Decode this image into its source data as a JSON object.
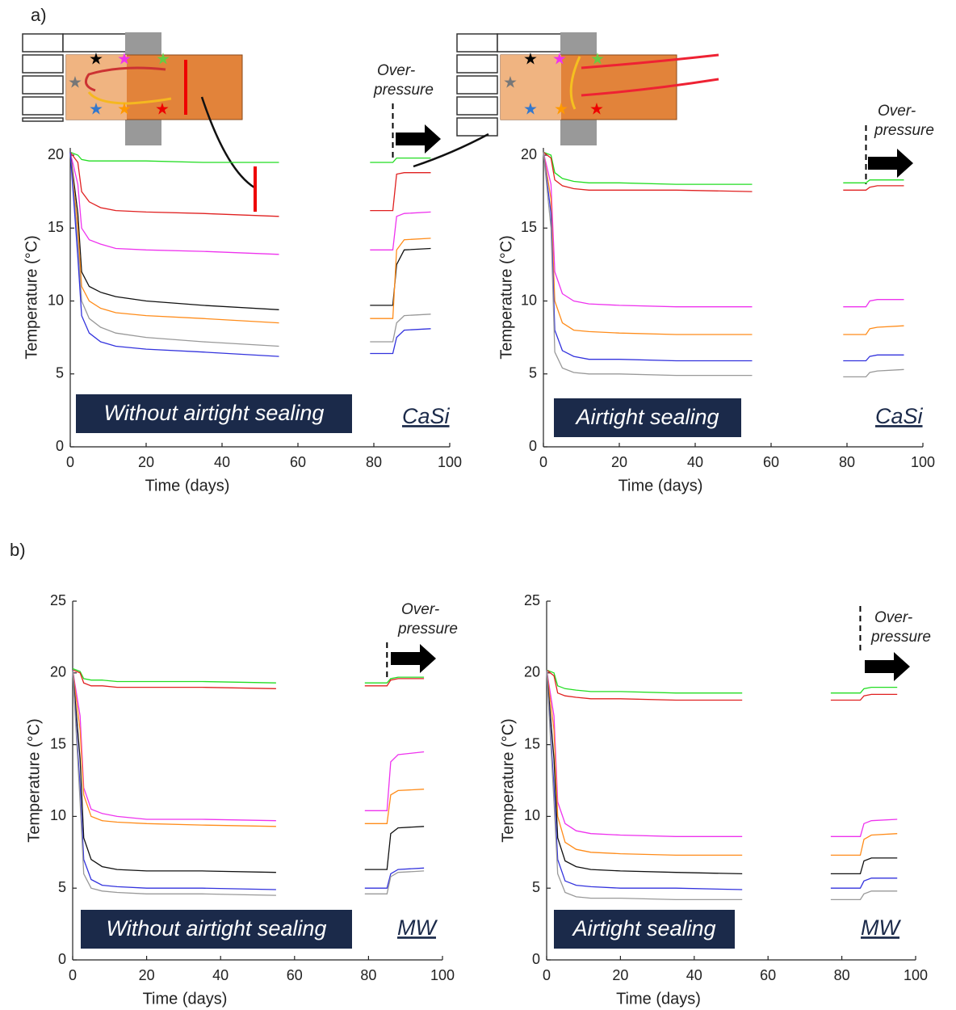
{
  "panel_labels": [
    "a)",
    "b)"
  ],
  "chart_data": [
    {
      "type": "line",
      "xlabel": "Time (days)",
      "ylabel": "Temperature (°C)",
      "xlim": [
        0,
        100
      ],
      "ylim": [
        0,
        20.5
      ],
      "xticks": [
        0,
        20,
        40,
        60,
        80,
        100
      ],
      "yticks": [
        0,
        5,
        10,
        15,
        20
      ],
      "annotation": [
        "Over-",
        "pressure"
      ],
      "event_x": 85,
      "label_box": "Without airtight sealing",
      "material": "CaSi",
      "x": [
        0,
        2,
        3,
        5,
        8,
        12,
        20,
        35,
        55,
        70,
        79,
        85,
        86,
        88,
        95
      ],
      "series": [
        {
          "color": "#22dd22",
          "values": [
            20.2,
            20,
            19.7,
            19.6,
            19.6,
            19.6,
            19.6,
            19.5,
            19.5,
            null,
            19.5,
            19.5,
            19.8,
            19.8,
            19.8
          ]
        },
        {
          "color": "#e02020",
          "values": [
            20.2,
            19.5,
            17.5,
            16.8,
            16.4,
            16.2,
            16.1,
            16,
            15.8,
            null,
            16.2,
            16.2,
            18.7,
            18.8,
            18.8
          ]
        },
        {
          "color": "#ee33ee",
          "values": [
            20.2,
            18,
            15,
            14.2,
            13.9,
            13.6,
            13.5,
            13.4,
            13.2,
            null,
            13.5,
            13.5,
            15.8,
            16,
            16.1
          ]
        },
        {
          "color": "#111111",
          "values": [
            20.2,
            16,
            12,
            11,
            10.6,
            10.3,
            10,
            9.7,
            9.4,
            null,
            9.7,
            9.7,
            12.5,
            13.5,
            13.6
          ]
        },
        {
          "color": "#ff8c1a",
          "values": [
            20.2,
            15,
            11,
            10,
            9.5,
            9.2,
            9,
            8.8,
            8.5,
            null,
            8.8,
            8.8,
            13.5,
            14.2,
            14.3
          ]
        },
        {
          "color": "#999999",
          "values": [
            20.2,
            14,
            10,
            8.8,
            8.2,
            7.8,
            7.5,
            7.2,
            6.9,
            null,
            7.2,
            7.2,
            8.5,
            9,
            9.1
          ]
        },
        {
          "color": "#3333dd",
          "values": [
            20.2,
            13,
            9,
            7.8,
            7.2,
            6.9,
            6.7,
            6.5,
            6.2,
            null,
            6.4,
            6.4,
            7.5,
            8,
            8.1
          ]
        }
      ]
    },
    {
      "type": "line",
      "xlabel": "Time (days)",
      "ylabel": "Temperature (°C)",
      "xlim": [
        0,
        100
      ],
      "ylim": [
        0,
        20.5
      ],
      "xticks": [
        0,
        20,
        40,
        60,
        80,
        100
      ],
      "yticks": [
        0,
        5,
        10,
        15,
        20
      ],
      "annotation": [
        "Over-",
        "pressure"
      ],
      "event_x": 85,
      "label_box": "Airtight sealing",
      "material": "CaSi",
      "x": [
        0,
        2,
        3,
        5,
        8,
        12,
        20,
        35,
        55,
        70,
        79,
        85,
        86,
        88,
        95
      ],
      "series": [
        {
          "color": "#22dd22",
          "values": [
            20.2,
            20,
            18.8,
            18.4,
            18.2,
            18.1,
            18.1,
            18,
            18,
            null,
            18.1,
            18.1,
            18.3,
            18.3,
            18.3
          ]
        },
        {
          "color": "#e02020",
          "values": [
            20.2,
            19.8,
            18.3,
            17.9,
            17.7,
            17.6,
            17.6,
            17.6,
            17.5,
            null,
            17.6,
            17.6,
            17.8,
            17.9,
            17.9
          ]
        },
        {
          "color": "#ee33ee",
          "values": [
            20.2,
            18,
            12,
            10.5,
            10,
            9.8,
            9.7,
            9.6,
            9.6,
            null,
            9.6,
            9.6,
            10,
            10.1,
            10.1
          ]
        },
        {
          "color": "#ff8c1a",
          "values": [
            20.2,
            17,
            10,
            8.5,
            8,
            7.9,
            7.8,
            7.7,
            7.7,
            null,
            7.7,
            7.7,
            8.1,
            8.2,
            8.3
          ]
        },
        {
          "color": "#3333dd",
          "values": [
            20.2,
            16,
            8,
            6.6,
            6.2,
            6,
            6,
            5.9,
            5.9,
            null,
            5.9,
            5.9,
            6.2,
            6.3,
            6.3
          ]
        },
        {
          "color": "#999999",
          "values": [
            20.2,
            15,
            6.5,
            5.4,
            5.1,
            5,
            5,
            4.9,
            4.9,
            null,
            4.8,
            4.8,
            5.1,
            5.2,
            5.3
          ]
        }
      ]
    },
    {
      "type": "line",
      "xlabel": "Time (days)",
      "ylabel": "Temperature (°C)",
      "xlim": [
        0,
        100
      ],
      "ylim": [
        0,
        25
      ],
      "xticks": [
        0,
        20,
        40,
        60,
        80,
        100
      ],
      "yticks": [
        0,
        5,
        10,
        15,
        20,
        25
      ],
      "annotation": [
        "Over-",
        "pressure"
      ],
      "event_x": 85,
      "label_box": "Without airtight sealing",
      "material": "MW",
      "x": [
        0,
        2,
        3,
        5,
        8,
        12,
        20,
        35,
        55,
        70,
        79,
        85,
        86,
        88,
        95
      ],
      "series": [
        {
          "color": "#22dd22",
          "values": [
            20.3,
            20.1,
            19.6,
            19.5,
            19.5,
            19.4,
            19.4,
            19.4,
            19.3,
            null,
            19.3,
            19.3,
            19.6,
            19.7,
            19.7
          ]
        },
        {
          "color": "#e02020",
          "values": [
            20.2,
            20,
            19.3,
            19.1,
            19.1,
            19,
            19,
            19,
            18.9,
            null,
            19.1,
            19.1,
            19.5,
            19.6,
            19.6
          ]
        },
        {
          "color": "#ee33ee",
          "values": [
            20.2,
            17,
            12,
            10.5,
            10.2,
            10,
            9.8,
            9.8,
            9.7,
            null,
            10.4,
            10.4,
            13.8,
            14.3,
            14.5
          ]
        },
        {
          "color": "#ff8c1a",
          "values": [
            20.2,
            16,
            11.5,
            10,
            9.7,
            9.6,
            9.5,
            9.4,
            9.3,
            null,
            9.5,
            9.5,
            11.5,
            11.8,
            11.9
          ]
        },
        {
          "color": "#111111",
          "values": [
            20.2,
            14,
            8.5,
            7,
            6.5,
            6.3,
            6.2,
            6.2,
            6.1,
            null,
            6.3,
            6.3,
            8.8,
            9.2,
            9.3
          ]
        },
        {
          "color": "#3333dd",
          "values": [
            20.2,
            12,
            7,
            5.6,
            5.2,
            5.1,
            5,
            5,
            4.9,
            null,
            5,
            5,
            6,
            6.3,
            6.4
          ]
        },
        {
          "color": "#999999",
          "values": [
            20.2,
            11,
            6,
            5,
            4.8,
            4.7,
            4.6,
            4.6,
            4.5,
            null,
            4.6,
            4.6,
            5.8,
            6.1,
            6.2
          ]
        }
      ]
    },
    {
      "type": "line",
      "xlabel": "Time (days)",
      "ylabel": "Temperature (°C)",
      "xlim": [
        0,
        100
      ],
      "ylim": [
        0,
        25
      ],
      "xticks": [
        0,
        20,
        40,
        60,
        80,
        100
      ],
      "yticks": [
        0,
        5,
        10,
        15,
        20,
        25
      ],
      "annotation": [
        "Over-",
        "pressure"
      ],
      "event_x": 85,
      "label_box": "Airtight sealing",
      "material": "MW",
      "x": [
        0,
        2,
        3,
        5,
        8,
        12,
        20,
        35,
        53,
        70,
        77,
        85,
        86,
        88,
        95
      ],
      "series": [
        {
          "color": "#22dd22",
          "values": [
            20.2,
            20,
            19.1,
            18.9,
            18.8,
            18.7,
            18.7,
            18.6,
            18.6,
            null,
            18.6,
            18.6,
            18.9,
            19,
            19
          ]
        },
        {
          "color": "#e02020",
          "values": [
            20.2,
            19.8,
            18.6,
            18.4,
            18.3,
            18.2,
            18.2,
            18.1,
            18.1,
            null,
            18.1,
            18.1,
            18.4,
            18.5,
            18.5
          ]
        },
        {
          "color": "#ee33ee",
          "values": [
            20.2,
            17,
            11,
            9.5,
            9,
            8.8,
            8.7,
            8.6,
            8.6,
            null,
            8.6,
            8.6,
            9.5,
            9.7,
            9.8
          ]
        },
        {
          "color": "#ff8c1a",
          "values": [
            20.2,
            16,
            10,
            8.2,
            7.7,
            7.5,
            7.4,
            7.3,
            7.3,
            null,
            7.3,
            7.3,
            8.4,
            8.7,
            8.8
          ]
        },
        {
          "color": "#111111",
          "values": [
            20.2,
            14,
            8.5,
            6.9,
            6.5,
            6.3,
            6.2,
            6.1,
            6,
            null,
            6,
            6,
            6.9,
            7.1,
            7.1
          ]
        },
        {
          "color": "#3333dd",
          "values": [
            20.2,
            12,
            7,
            5.5,
            5.2,
            5.1,
            5,
            5,
            4.9,
            null,
            5,
            5,
            5.5,
            5.7,
            5.7
          ]
        },
        {
          "color": "#999999",
          "values": [
            20.2,
            11,
            6,
            4.7,
            4.4,
            4.3,
            4.3,
            4.2,
            4.2,
            null,
            4.2,
            4.2,
            4.6,
            4.8,
            4.8
          ]
        }
      ]
    }
  ]
}
